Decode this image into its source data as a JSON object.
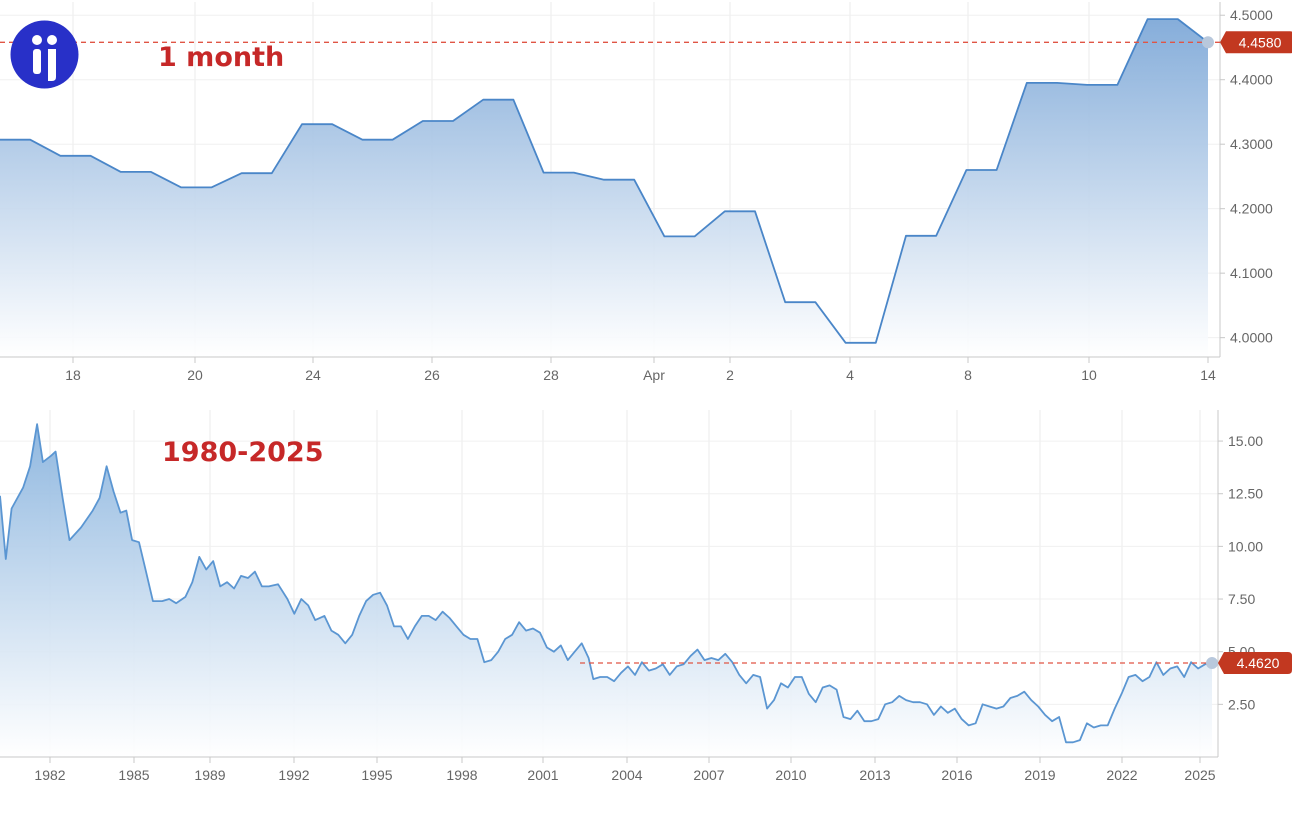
{
  "logo": {
    "letter": "i",
    "bg": "#2830c8"
  },
  "chart_data": [
    {
      "type": "area",
      "title": "1 month",
      "x_tick_labels": [
        "18",
        "20",
        "24",
        "26",
        "28",
        "Apr",
        "2",
        "4",
        "8",
        "10",
        "14"
      ],
      "y_tick_labels": [
        "4.0000",
        "4.1000",
        "4.2000",
        "4.3000",
        "4.4000",
        "4.5000"
      ],
      "ylim": [
        3.97,
        4.505
      ],
      "grid": true,
      "current_value": 4.458,
      "current_label": "4.4580",
      "series": [
        {
          "values": [
            4.307,
            4.307,
            4.282,
            4.282,
            4.257,
            4.257,
            4.233,
            4.233,
            4.255,
            4.255,
            4.331,
            4.331,
            4.307,
            4.307,
            4.336,
            4.336,
            4.369,
            4.369,
            4.256,
            4.256,
            4.245,
            4.245,
            4.157,
            4.157,
            4.196,
            4.196,
            4.055,
            4.055,
            3.992,
            3.992,
            4.158,
            4.158,
            4.26,
            4.26,
            4.395,
            4.395,
            4.392,
            4.392,
            4.494,
            4.494,
            4.458
          ]
        }
      ],
      "colors": {
        "line": "#4a86c8",
        "fill_top": "#7fa9d8",
        "ref_line": "#e05545",
        "badge": "#c23820"
      }
    },
    {
      "type": "area",
      "title": "1980-2025",
      "x_tick_labels": [
        "1982",
        "1985",
        "1989",
        "1992",
        "1995",
        "1998",
        "2001",
        "2004",
        "2007",
        "2010",
        "2013",
        "2016",
        "2019",
        "2022",
        "2025"
      ],
      "y_tick_labels": [
        "2.50",
        "5.00",
        "7.50",
        "10.00",
        "12.50",
        "15.00"
      ],
      "ylim": [
        0.0,
        16.0
      ],
      "grid": true,
      "current_value": 4.462,
      "current_label": "4.4620",
      "series": [
        {
          "points": [
            [
              1980.0,
              12.4
            ],
            [
              1980.25,
              9.4
            ],
            [
              1980.5,
              11.8
            ],
            [
              1981.0,
              12.8
            ],
            [
              1981.3,
              13.8
            ],
            [
              1981.6,
              15.8
            ],
            [
              1981.85,
              14.0
            ],
            [
              1982.2,
              14.3
            ],
            [
              1982.4,
              14.5
            ],
            [
              1982.7,
              12.3
            ],
            [
              1983.0,
              10.3
            ],
            [
              1983.5,
              10.9
            ],
            [
              1984.0,
              11.7
            ],
            [
              1984.3,
              12.3
            ],
            [
              1984.6,
              13.8
            ],
            [
              1984.9,
              12.6
            ],
            [
              1985.2,
              11.6
            ],
            [
              1985.45,
              11.7
            ],
            [
              1985.7,
              10.3
            ],
            [
              1986.0,
              10.2
            ],
            [
              1986.3,
              8.8
            ],
            [
              1986.6,
              7.4
            ],
            [
              1987.0,
              7.4
            ],
            [
              1987.3,
              7.5
            ],
            [
              1987.6,
              7.3
            ],
            [
              1988.0,
              7.6
            ],
            [
              1988.3,
              8.3
            ],
            [
              1988.6,
              9.5
            ],
            [
              1988.9,
              8.9
            ],
            [
              1989.2,
              9.3
            ],
            [
              1989.5,
              8.1
            ],
            [
              1989.8,
              8.3
            ],
            [
              1990.1,
              8.0
            ],
            [
              1990.4,
              8.6
            ],
            [
              1990.7,
              8.5
            ],
            [
              1991.0,
              8.8
            ],
            [
              1991.3,
              8.1
            ],
            [
              1991.6,
              8.1
            ],
            [
              1992.0,
              8.2
            ],
            [
              1992.4,
              7.5
            ],
            [
              1992.7,
              6.8
            ],
            [
              1993.0,
              7.5
            ],
            [
              1993.3,
              7.2
            ],
            [
              1993.6,
              6.5
            ],
            [
              1994.0,
              6.7
            ],
            [
              1994.3,
              6.0
            ],
            [
              1994.6,
              5.8
            ],
            [
              1994.9,
              5.4
            ],
            [
              1995.2,
              5.8
            ],
            [
              1995.5,
              6.7
            ],
            [
              1995.8,
              7.4
            ],
            [
              1996.1,
              7.7
            ],
            [
              1996.4,
              7.8
            ],
            [
              1996.7,
              7.2
            ],
            [
              1997.0,
              6.2
            ],
            [
              1997.3,
              6.2
            ],
            [
              1997.6,
              5.6
            ],
            [
              1997.9,
              6.2
            ],
            [
              1998.2,
              6.7
            ],
            [
              1998.5,
              6.7
            ],
            [
              1998.8,
              6.5
            ],
            [
              1999.1,
              6.9
            ],
            [
              1999.4,
              6.6
            ],
            [
              1999.7,
              6.2
            ],
            [
              2000.0,
              5.8
            ],
            [
              2000.3,
              5.6
            ],
            [
              2000.6,
              5.6
            ],
            [
              2000.9,
              4.5
            ],
            [
              2001.2,
              4.6
            ],
            [
              2001.5,
              5.0
            ],
            [
              2001.8,
              5.6
            ],
            [
              2002.1,
              5.8
            ],
            [
              2002.4,
              6.4
            ],
            [
              2002.7,
              6.0
            ],
            [
              2003.0,
              6.1
            ],
            [
              2003.3,
              5.9
            ],
            [
              2003.6,
              5.2
            ],
            [
              2003.9,
              5.0
            ],
            [
              2004.2,
              5.3
            ],
            [
              2004.5,
              4.6
            ],
            [
              2004.8,
              5.0
            ],
            [
              2005.1,
              5.4
            ],
            [
              2005.4,
              4.7
            ],
            [
              2005.6,
              3.7
            ],
            [
              2005.9,
              3.8
            ],
            [
              2006.2,
              3.8
            ],
            [
              2006.5,
              3.6
            ],
            [
              2006.8,
              4.0
            ],
            [
              2007.1,
              4.3
            ],
            [
              2007.4,
              3.9
            ],
            [
              2007.7,
              4.5
            ],
            [
              2008.0,
              4.1
            ],
            [
              2008.3,
              4.2
            ],
            [
              2008.6,
              4.4
            ],
            [
              2008.9,
              3.9
            ],
            [
              2009.2,
              4.3
            ],
            [
              2009.5,
              4.4
            ],
            [
              2009.8,
              4.8
            ],
            [
              2010.1,
              5.1
            ],
            [
              2010.4,
              4.6
            ],
            [
              2010.7,
              4.7
            ],
            [
              2011.0,
              4.6
            ],
            [
              2011.3,
              4.9
            ],
            [
              2011.6,
              4.5
            ],
            [
              2011.9,
              3.9
            ],
            [
              2012.2,
              3.5
            ],
            [
              2012.5,
              3.9
            ],
            [
              2012.8,
              3.8
            ],
            [
              2013.1,
              2.3
            ],
            [
              2013.4,
              2.7
            ],
            [
              2013.7,
              3.5
            ],
            [
              2014.0,
              3.3
            ],
            [
              2014.3,
              3.8
            ],
            [
              2014.6,
              3.8
            ],
            [
              2014.9,
              3.0
            ],
            [
              2015.2,
              2.6
            ],
            [
              2015.5,
              3.3
            ],
            [
              2015.8,
              3.4
            ],
            [
              2016.1,
              3.2
            ],
            [
              2016.4,
              1.9
            ],
            [
              2016.7,
              1.8
            ],
            [
              2017.0,
              2.2
            ],
            [
              2017.3,
              1.7
            ],
            [
              2017.6,
              1.7
            ],
            [
              2017.9,
              1.8
            ],
            [
              2018.2,
              2.5
            ],
            [
              2018.5,
              2.6
            ],
            [
              2018.8,
              2.9
            ],
            [
              2019.1,
              2.7
            ],
            [
              2019.4,
              2.6
            ],
            [
              2019.7,
              2.6
            ],
            [
              2020.0,
              2.5
            ],
            [
              2020.3,
              2.0
            ],
            [
              2020.6,
              2.4
            ],
            [
              2020.9,
              2.1
            ],
            [
              2021.2,
              2.3
            ],
            [
              2021.5,
              1.8
            ],
            [
              2021.8,
              1.5
            ],
            [
              2022.1,
              1.6
            ],
            [
              2022.4,
              2.5
            ],
            [
              2022.7,
              2.4
            ],
            [
              2023.0,
              2.3
            ],
            [
              2023.3,
              2.4
            ],
            [
              2023.6,
              2.8
            ],
            [
              2023.9,
              2.9
            ],
            [
              2024.2,
              3.1
            ],
            [
              2024.5,
              2.7
            ],
            [
              2024.8,
              2.4
            ],
            [
              2025.1,
              2.0
            ],
            [
              2025.4,
              1.7
            ],
            [
              2025.7,
              1.9
            ],
            [
              2026.0,
              0.7
            ],
            [
              2026.3,
              0.7
            ],
            [
              2026.6,
              0.8
            ],
            [
              2026.9,
              1.6
            ],
            [
              2027.2,
              1.4
            ],
            [
              2027.5,
              1.5
            ],
            [
              2027.8,
              1.5
            ],
            [
              2028.1,
              2.3
            ],
            [
              2028.4,
              3.0
            ],
            [
              2028.7,
              3.8
            ],
            [
              2029.0,
              3.9
            ],
            [
              2029.3,
              3.6
            ],
            [
              2029.6,
              3.8
            ],
            [
              2029.9,
              4.5
            ],
            [
              2030.2,
              3.9
            ],
            [
              2030.5,
              4.2
            ],
            [
              2030.8,
              4.3
            ],
            [
              2031.1,
              3.8
            ],
            [
              2031.4,
              4.5
            ],
            [
              2031.7,
              4.2
            ],
            [
              2032.0,
              4.4
            ],
            [
              2032.3,
              4.46
            ]
          ]
        }
      ],
      "colors": {
        "line": "#5b96d2",
        "fill_top": "#8ab4de",
        "ref_line": "#e05545",
        "badge": "#c23820"
      }
    }
  ]
}
